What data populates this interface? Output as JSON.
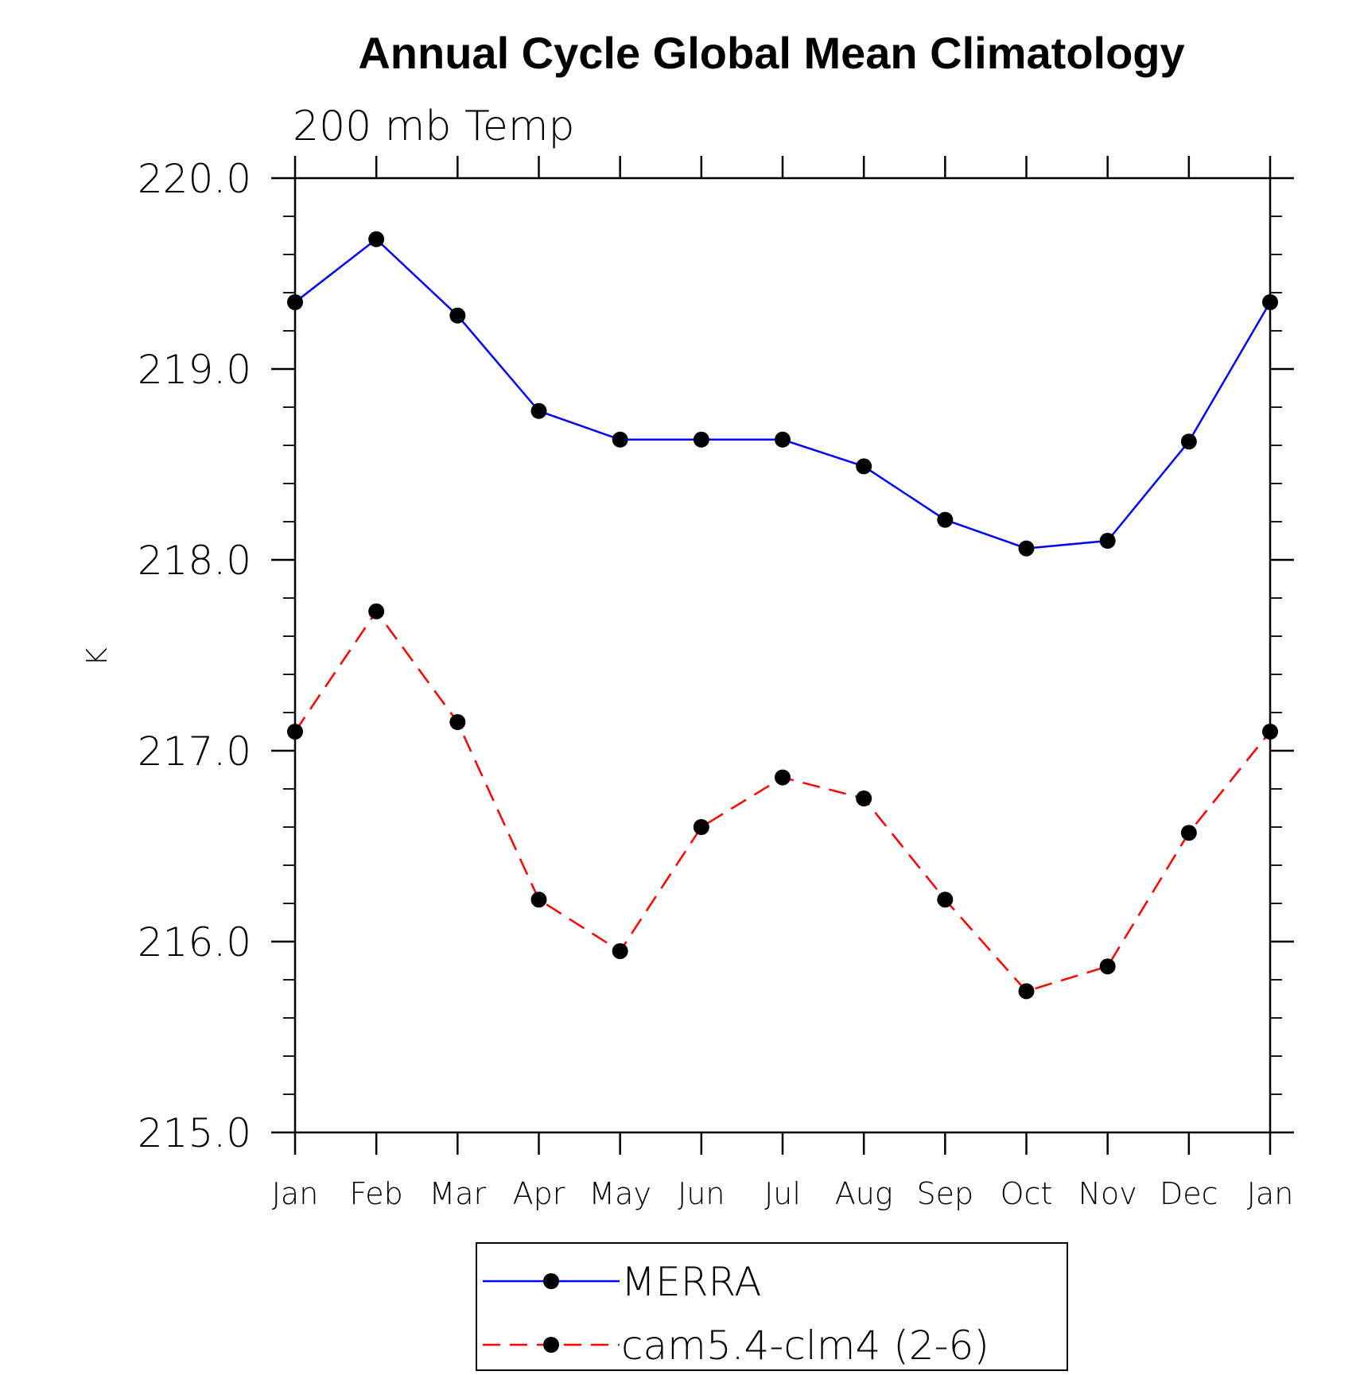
{
  "chart_data": {
    "type": "line",
    "title": "Annual Cycle Global Mean Climatology",
    "subtitle": "200 mb Temp",
    "xlabel": "",
    "ylabel": "K",
    "categories": [
      "Jan",
      "Feb",
      "Mar",
      "Apr",
      "May",
      "Jun",
      "Jul",
      "Aug",
      "Sep",
      "Oct",
      "Nov",
      "Dec",
      "Jan"
    ],
    "ylim": [
      215.0,
      220.0
    ],
    "yticks": [
      215.0,
      216.0,
      217.0,
      218.0,
      219.0,
      220.0
    ],
    "ytick_labels": [
      "215.0",
      "216.0",
      "217.0",
      "218.0",
      "219.0",
      "220.0"
    ],
    "y_minor_step": 0.2,
    "grid": false,
    "legend_position": "bottom-center",
    "series": [
      {
        "name": "MERRA",
        "color": "#0000ff",
        "line_style": "solid",
        "marker": "filled-circle",
        "values": [
          219.35,
          219.68,
          219.28,
          218.78,
          218.63,
          218.63,
          218.63,
          218.49,
          218.21,
          218.06,
          218.1,
          218.62,
          219.35
        ]
      },
      {
        "name": "cam5.4-clm4 (2-6)",
        "color": "#ff0000",
        "line_style": "dashed",
        "marker": "filled-circle",
        "values": [
          217.1,
          217.73,
          217.15,
          216.22,
          215.95,
          216.6,
          216.86,
          216.75,
          216.22,
          215.74,
          215.87,
          216.57,
          217.1
        ]
      }
    ]
  }
}
